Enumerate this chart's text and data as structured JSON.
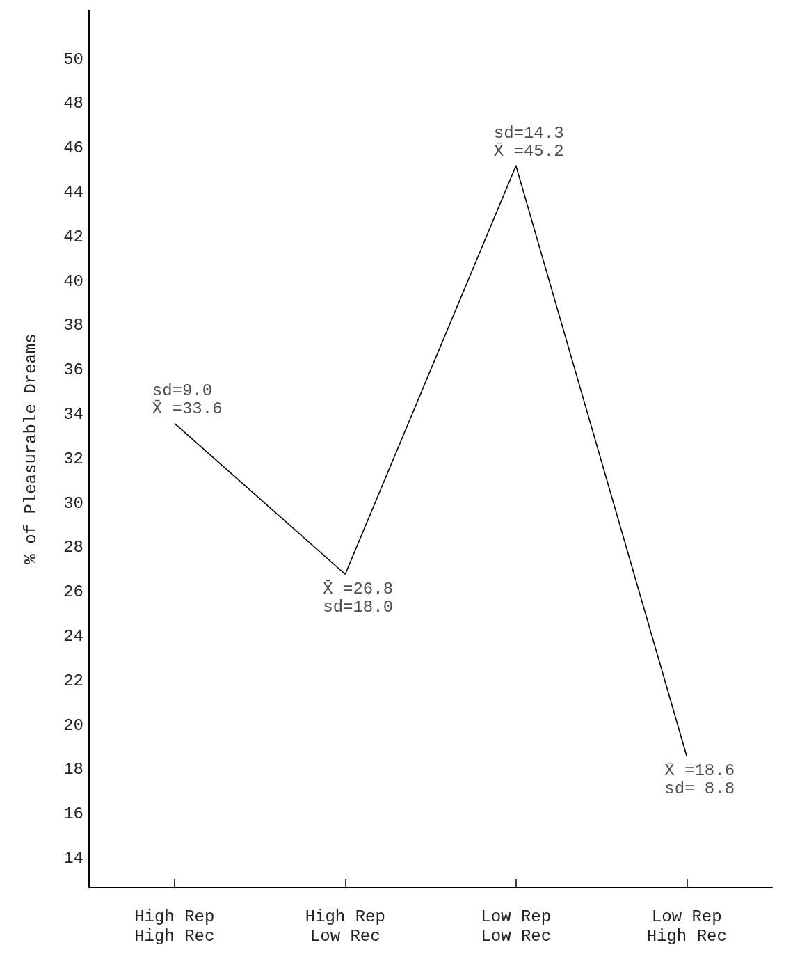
{
  "chart_data": {
    "type": "line",
    "ylabel": "% of Pleasurable Dreams",
    "categories": [
      "High Rep\nHigh Rec",
      "High Rep\nLow Rec",
      "Low Rep\nLow Rec",
      "Low Rep\nHigh Rec"
    ],
    "series": [
      {
        "color": "#000000",
        "values": [
          33.6,
          26.8,
          45.2,
          18.6
        ]
      }
    ],
    "ylim": [
      12.7,
      52.2
    ],
    "yticks": [
      14,
      16,
      18,
      20,
      22,
      24,
      26,
      28,
      30,
      32,
      34,
      36,
      38,
      40,
      42,
      44,
      46,
      48,
      50
    ],
    "grid": false,
    "marker": "none",
    "line_style": "solid",
    "annotations": [
      {
        "text": "sd=9.0\nX̄ =33.6",
        "x": "High Rep\nHigh Rec",
        "y": 33.6
      },
      {
        "text": "X̄ =26.8\nsd=18.0",
        "x": "High Rep\nLow Rec",
        "y": 26.8
      },
      {
        "text": "sd=14.3\nX̄ =45.2",
        "x": "Low Rep\nLow Rec",
        "y": 45.2
      },
      {
        "text": "X̄ =18.6\nsd= 8.8",
        "x": "Low Rep\nHigh Rec",
        "y": 18.6
      }
    ]
  }
}
